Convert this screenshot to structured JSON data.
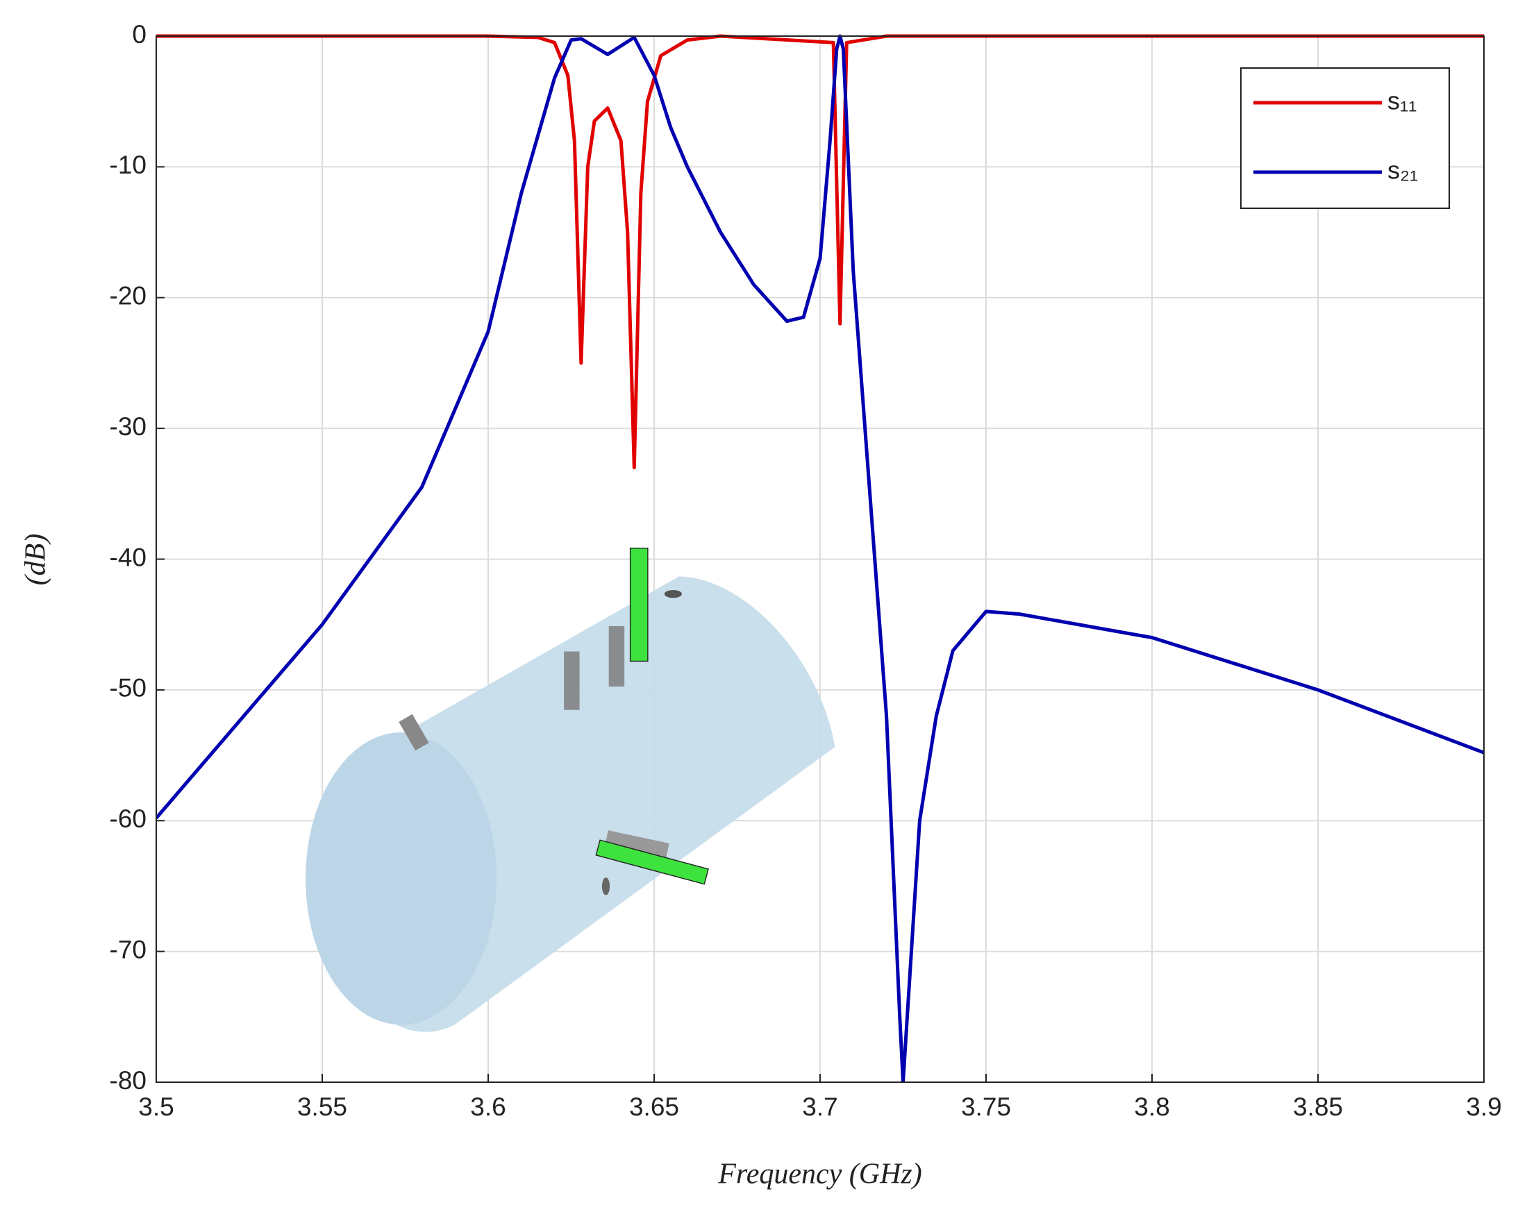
{
  "chart_data": {
    "type": "line",
    "x_label": "Frequency (GHz)",
    "y_label": "(dB)",
    "xlim": [
      3.5,
      3.9
    ],
    "xticks": [
      3.5,
      3.55,
      3.6,
      3.65,
      3.7,
      3.75,
      3.8,
      3.85,
      3.9
    ],
    "ylim": [
      -80,
      0
    ],
    "yticks": [
      0,
      -10,
      -20,
      -30,
      -40,
      -50,
      -60,
      -70,
      -80
    ],
    "grid": true,
    "legend": "upper right",
    "series": [
      {
        "name": "s₁₁",
        "color": "#e00000",
        "x": [
          3.5,
          3.6,
          3.615,
          3.62,
          3.624,
          3.626,
          3.628,
          3.63,
          3.632,
          3.636,
          3.64,
          3.642,
          3.644,
          3.646,
          3.648,
          3.652,
          3.66,
          3.67,
          3.704,
          3.706,
          3.708,
          3.72,
          3.9
        ],
        "values": [
          0,
          0,
          -0.1,
          -0.5,
          -3,
          -8,
          -25,
          -10,
          -6.5,
          -5.5,
          -8,
          -15,
          -33,
          -12,
          -5,
          -1.5,
          -0.3,
          0,
          -0.5,
          -22,
          -0.5,
          0,
          0
        ]
      },
      {
        "name": "s₂₁",
        "color": "#0000b0",
        "x": [
          3.5,
          3.55,
          3.58,
          3.6,
          3.61,
          3.62,
          3.625,
          3.628,
          3.636,
          3.644,
          3.65,
          3.655,
          3.66,
          3.67,
          3.68,
          3.69,
          3.695,
          3.7,
          3.703,
          3.705,
          3.706,
          3.707,
          3.71,
          3.715,
          3.72,
          3.724,
          3.725,
          3.727,
          3.73,
          3.735,
          3.74,
          3.75,
          3.76,
          3.8,
          3.85,
          3.9
        ],
        "values": [
          -59.8,
          -45,
          -34.5,
          -22.6,
          -12,
          -3.2,
          -0.3,
          -0.2,
          -1.4,
          -0.1,
          -3,
          -7,
          -10,
          -15,
          -19,
          -21.8,
          -21.5,
          -17,
          -8,
          -1,
          0,
          -1,
          -18,
          -35,
          -52,
          -75,
          -80,
          -72,
          -60,
          -52,
          -47,
          -44,
          -44.2,
          -46,
          -50,
          -54.8
        ]
      }
    ]
  }
}
